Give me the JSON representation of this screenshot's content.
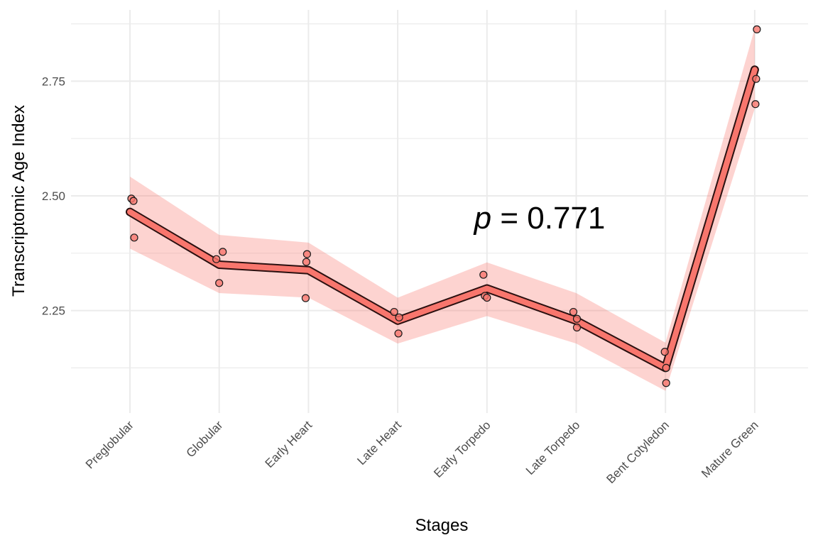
{
  "chart_data": {
    "type": "line",
    "xlabel": "Stages",
    "ylabel": "Transcriptomic Age Index",
    "categories": [
      "Preglobular",
      "Globular",
      "Early Heart",
      "Late Heart",
      "Early Torpedo",
      "Late Torpedo",
      "Bent Cotyledon",
      "Mature Green"
    ],
    "mean": [
      2.465,
      2.35,
      2.338,
      2.228,
      2.298,
      2.228,
      2.125,
      2.775
    ],
    "ribbon_upper": [
      2.542,
      2.415,
      2.398,
      2.278,
      2.355,
      2.288,
      2.18,
      2.865
    ],
    "ribbon_lower": [
      2.385,
      2.288,
      2.278,
      2.178,
      2.238,
      2.178,
      2.075,
      2.69
    ],
    "points": [
      [
        2.494,
        2.489,
        2.409
      ],
      [
        2.362,
        2.378,
        2.31
      ],
      [
        2.356,
        2.373,
        2.277
      ],
      [
        2.247,
        2.235,
        2.2
      ],
      [
        2.328,
        2.282,
        2.278
      ],
      [
        2.247,
        2.232,
        2.213
      ],
      [
        2.16,
        2.125,
        2.092
      ],
      [
        2.863,
        2.755,
        2.7
      ]
    ],
    "yticks": [
      "2.25",
      "2.50",
      "2.75"
    ],
    "ylim": [
      2.06,
      2.88
    ],
    "annotation_italic": "p",
    "annotation_rest": " = 0.771",
    "colors": {
      "line": "#f8766d",
      "ribbon": "#f8766d",
      "point": "#f8766d",
      "outline": "#000000",
      "grid": "#ebebeb"
    },
    "grid": true,
    "legend": "none"
  }
}
